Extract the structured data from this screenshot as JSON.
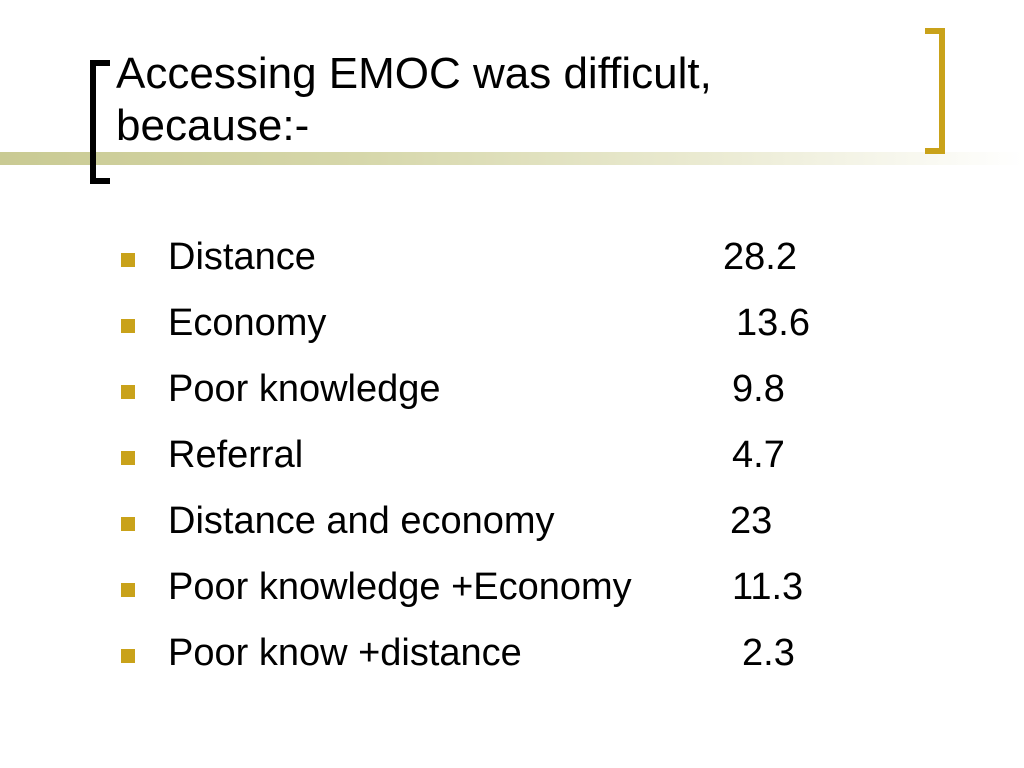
{
  "slide": {
    "title_line1": "Accessing EMOC was difficult,",
    "title_line2": "because:-",
    "accent_color": "#c9a21a",
    "band_color": "#c9ca93",
    "bullets": [
      {
        "label": "Distance",
        "value": "28.2"
      },
      {
        "label": "Economy",
        "value": "13.6"
      },
      {
        "label": "Poor knowledge",
        "value": "9.8"
      },
      {
        "label": "Referral",
        "value": "4.7"
      },
      {
        "label": "Distance and economy",
        "value": "23"
      },
      {
        "label": "Poor knowledge +Economy",
        "value": "11.3"
      },
      {
        "label": "Poor know +distance",
        "value": "2.3"
      }
    ]
  }
}
